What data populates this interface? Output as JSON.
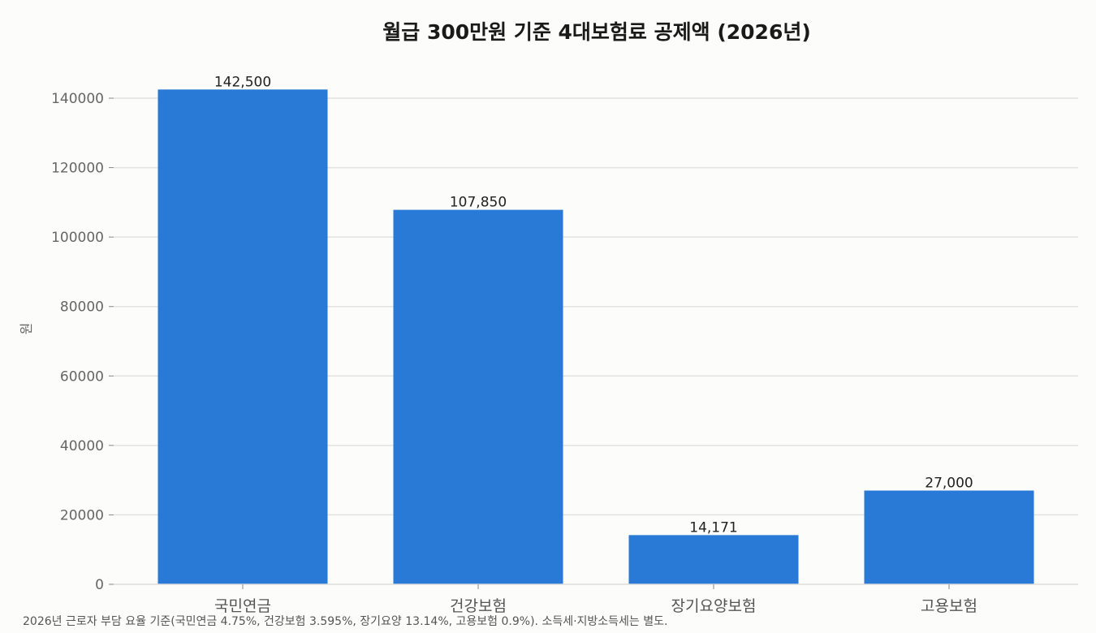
{
  "chart_data": {
    "type": "bar",
    "title": "월급 300만원 기준 4대보험료 공제액 (2026년)",
    "xlabel": "",
    "ylabel": "원",
    "categories": [
      "국민연금",
      "건강보험",
      "장기요양보험",
      "고용보험"
    ],
    "values": [
      142500,
      107850,
      14171,
      27000
    ],
    "value_labels": [
      "142,500",
      "107,850",
      "14,171",
      "27,000"
    ],
    "ylim": [
      0,
      150000
    ],
    "yticks": [
      0,
      20000,
      40000,
      60000,
      80000,
      100000,
      120000,
      140000
    ],
    "ytick_labels": [
      "0",
      "20000",
      "40000",
      "60000",
      "80000",
      "100000",
      "120000",
      "140000"
    ],
    "grid": true,
    "bar_color": "#2979d6"
  },
  "footnote": "2026년 근로자 부담 요율 기준(국민연금 4.75%, 건강보험 3.595%, 장기요양 13.14%, 고용보험 0.9%). 소득세·지방소득세는 별도."
}
